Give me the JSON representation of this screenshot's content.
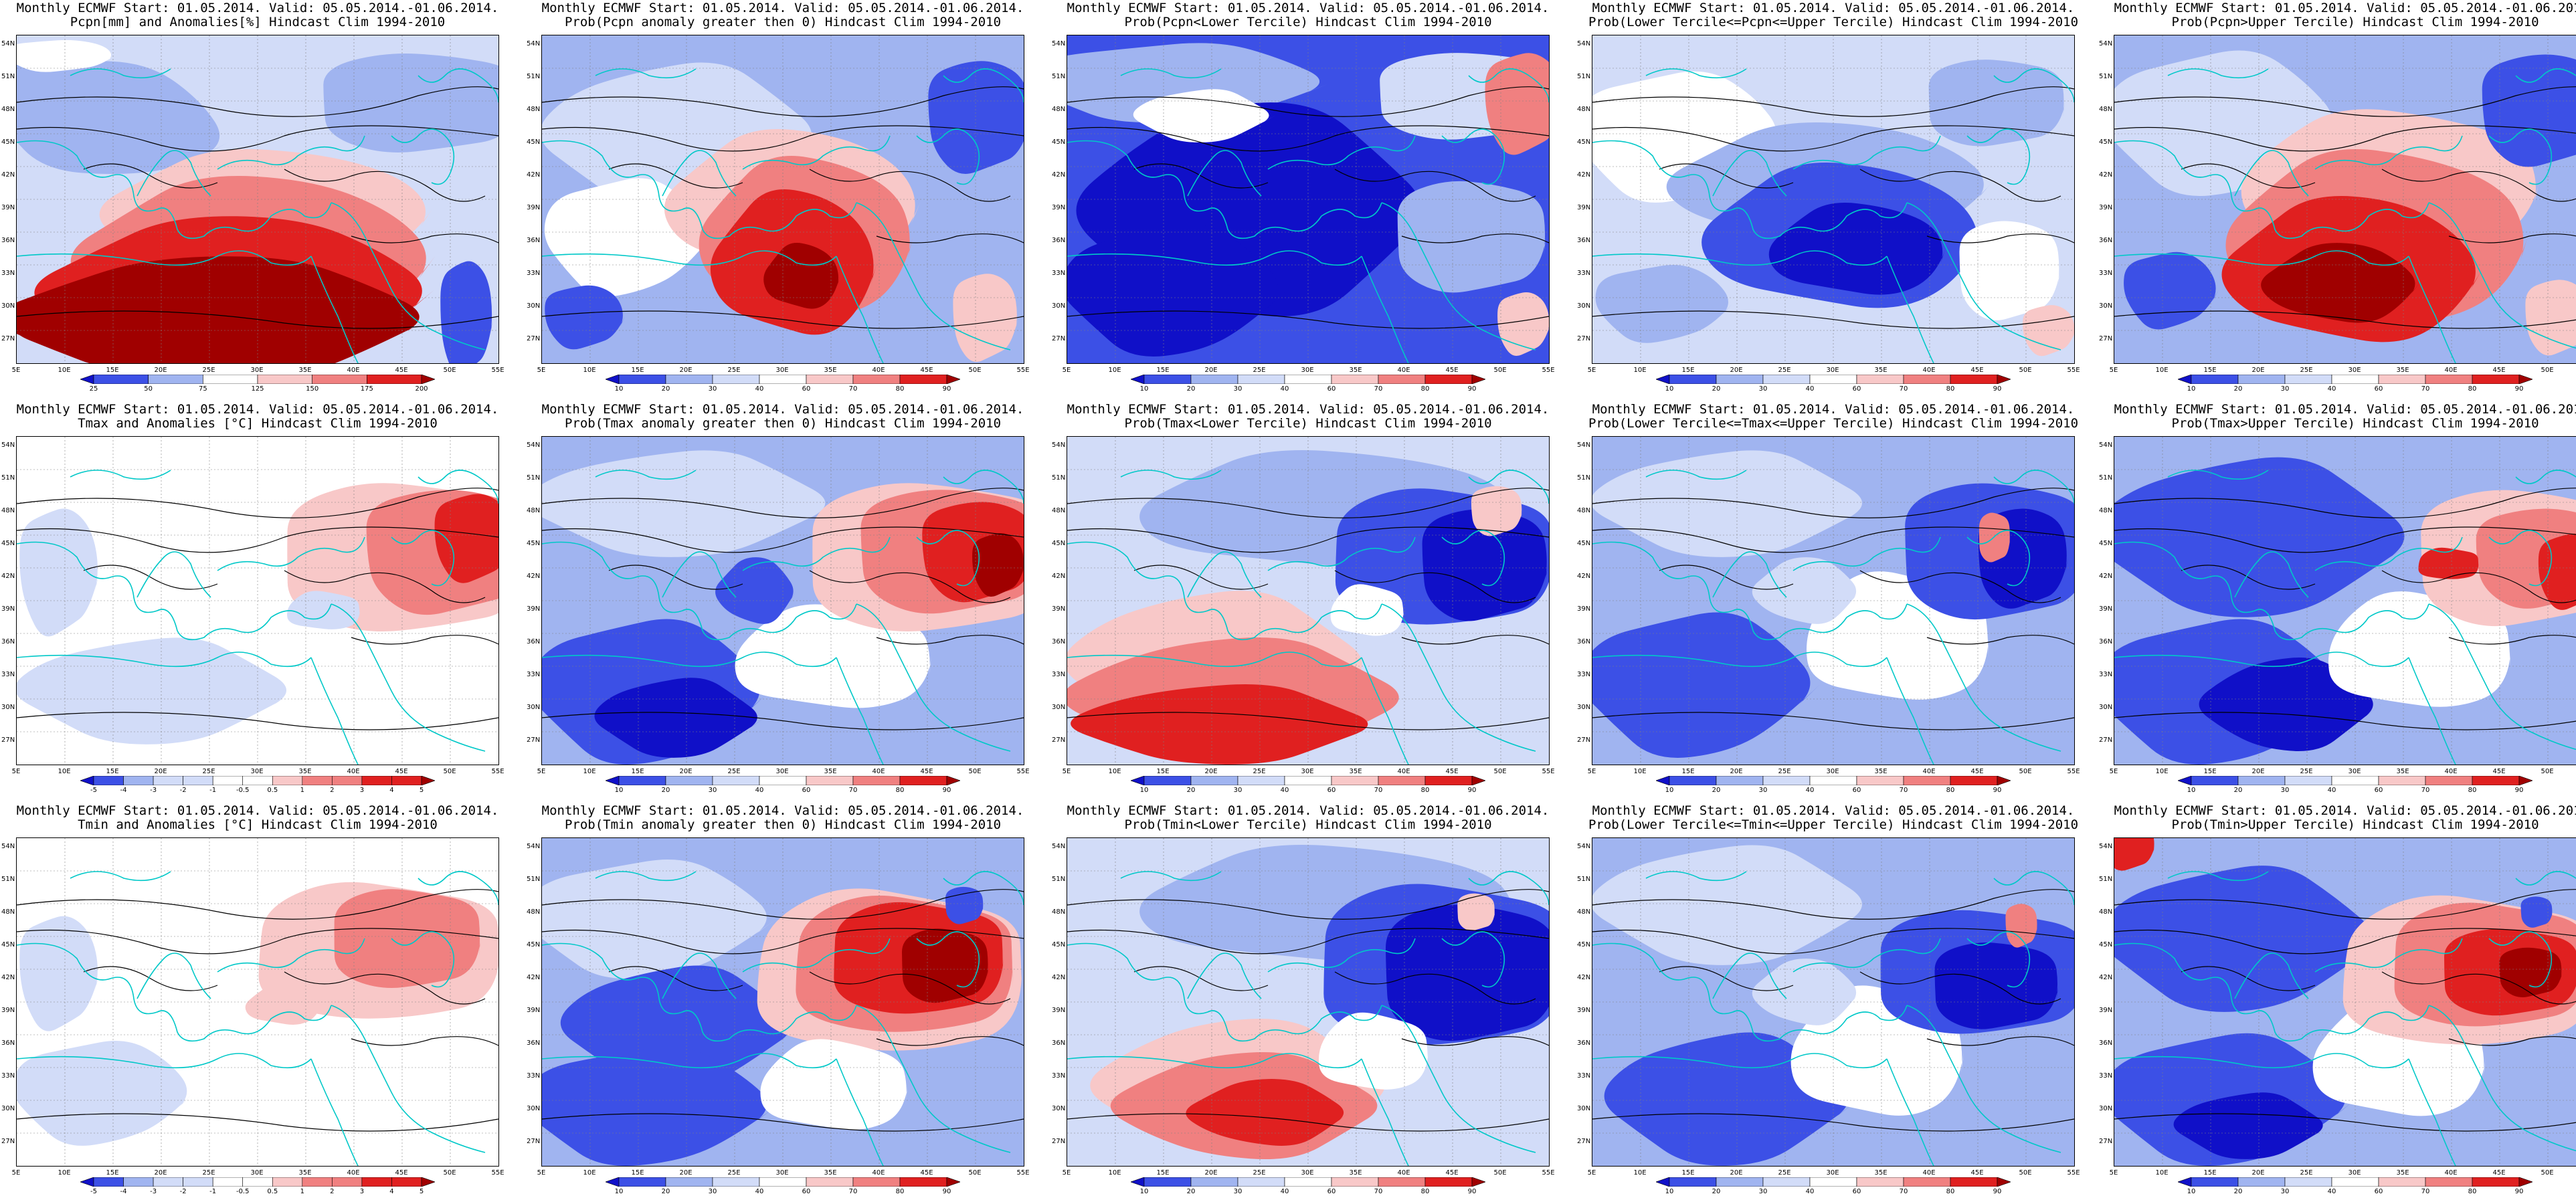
{
  "header_line": "Monthly ECMWF Start: 01.05.2014. Valid: 05.05.2014.-01.06.2014.",
  "lat_ticks": [
    "54N",
    "51N",
    "48N",
    "45N",
    "42N",
    "39N",
    "36N",
    "33N",
    "30N",
    "27N"
  ],
  "lon_ticks": [
    "5E",
    "10E",
    "15E",
    "20E",
    "25E",
    "30E",
    "35E",
    "40E",
    "45E",
    "50E",
    "55E"
  ],
  "colorbars": {
    "pcpn_anom": [
      "25",
      "50",
      "75",
      "125",
      "150",
      "175",
      "200"
    ],
    "temp_anom": [
      "-5",
      "-4",
      "-3",
      "-2",
      "-1",
      "-0.5",
      "0.5",
      "1",
      "2",
      "3",
      "4",
      "5"
    ],
    "prob": [
      "10",
      "20",
      "30",
      "40",
      "60",
      "70",
      "80",
      "90"
    ]
  },
  "colors": {
    "deep_blue": "#1010c8",
    "blue": "#3c50e6",
    "light_blue": "#a0b4f0",
    "pale_blue": "#d2dcf8",
    "white": "#ffffff",
    "pale_red": "#f8c8c8",
    "light_red": "#f08080",
    "red": "#e02020",
    "dark_red": "#a00000",
    "coast": "#00c8c8",
    "contour": "#000000"
  },
  "rows": [
    {
      "variable": "pcpn",
      "panels": [
        {
          "subtitle": "Pcpn[mm] and Anomalies[%] Hindcast Clim 1994-2010",
          "cbar": "pcpn_anom",
          "pattern": "pcpn_anom"
        },
        {
          "subtitle": "Prob(Pcpn anomaly greater then 0) Hindcast Clim 1994-2010",
          "cbar": "prob",
          "pattern": "pcpn_gt0"
        },
        {
          "subtitle": "Prob(Pcpn<Lower Tercile) Hindcast Clim 1994-2010",
          "cbar": "prob",
          "pattern": "pcpn_low"
        },
        {
          "subtitle": "Prob(Lower Tercile<=Pcpn<=Upper Tercile) Hindcast Clim 1994-2010",
          "cbar": "prob",
          "pattern": "pcpn_mid"
        },
        {
          "subtitle": "Prob(Pcpn>Upper Tercile) Hindcast Clim 1994-2010",
          "cbar": "prob",
          "pattern": "pcpn_up"
        }
      ]
    },
    {
      "variable": "tmax",
      "panels": [
        {
          "subtitle": "Tmax and Anomalies [°C] Hindcast Clim 1994-2010",
          "cbar": "temp_anom",
          "pattern": "tmax_anom"
        },
        {
          "subtitle": "Prob(Tmax anomaly greater then 0) Hindcast Clim 1994-2010",
          "cbar": "prob",
          "pattern": "tmax_gt0"
        },
        {
          "subtitle": "Prob(Tmax<Lower Tercile) Hindcast Clim 1994-2010",
          "cbar": "prob",
          "pattern": "tmax_low"
        },
        {
          "subtitle": "Prob(Lower Tercile<=Tmax<=Upper Tercile) Hindcast Clim 1994-2010",
          "cbar": "prob",
          "pattern": "tmax_mid"
        },
        {
          "subtitle": "Prob(Tmax>Upper Tercile) Hindcast Clim 1994-2010",
          "cbar": "prob",
          "pattern": "tmax_up"
        }
      ]
    },
    {
      "variable": "tmin",
      "panels": [
        {
          "subtitle": "Tmin and Anomalies [°C] Hindcast Clim 1994-2010",
          "cbar": "temp_anom",
          "pattern": "tmin_anom"
        },
        {
          "subtitle": "Prob(Tmin anomaly greater then 0) Hindcast Clim 1994-2010",
          "cbar": "prob",
          "pattern": "tmin_gt0"
        },
        {
          "subtitle": "Prob(Tmin<Lower Tercile) Hindcast Clim 1994-2010",
          "cbar": "prob",
          "pattern": "tmin_low"
        },
        {
          "subtitle": "Prob(Lower Tercile<=Tmin<=Upper Tercile) Hindcast Clim 1994-2010",
          "cbar": "prob",
          "pattern": "tmin_mid"
        },
        {
          "subtitle": "Prob(Tmin>Upper Tercile) Hindcast Clim 1994-2010",
          "cbar": "prob",
          "pattern": "tmin_up"
        }
      ]
    }
  ]
}
